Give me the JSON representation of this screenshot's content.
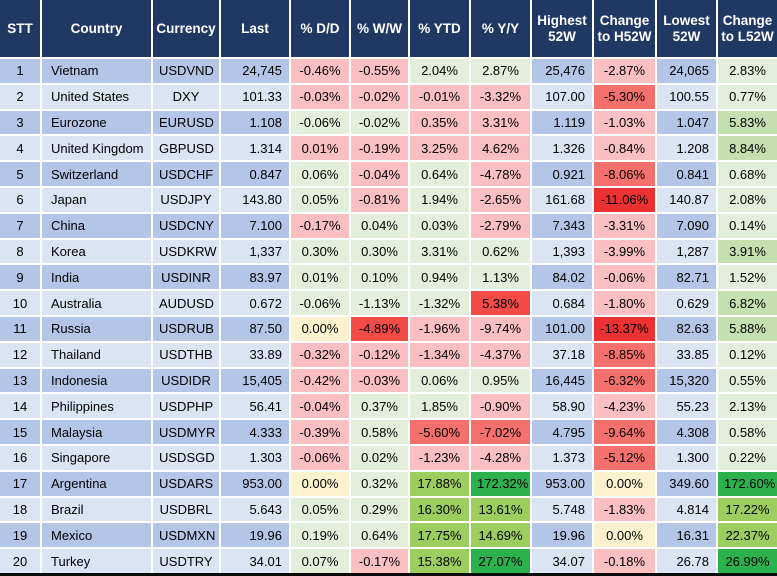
{
  "palette": {
    "header_bg": "#1F3864",
    "header_text": "#FFFFFF",
    "stripe_dark": "#B3C6E7",
    "stripe_light": "#DAE4F3",
    "grid_line": "#FFFFFF",
    "bottom_border": "#0A0A0A",
    "R1": "#F9BFC1",
    "R2": "#F4706C",
    "R3": "#F34B47",
    "R4": "#EC3132",
    "CREAM": "#FDF2CF",
    "G1": "#E3EFDA",
    "G2": "#C5E0B0",
    "G3": "#9BCD5F",
    "G4": "#2BB24C"
  },
  "table": {
    "columns": [
      {
        "key": "stt",
        "label": "STT",
        "width": 40,
        "align": "center"
      },
      {
        "key": "country",
        "label": "Country",
        "width": 111,
        "align": "left"
      },
      {
        "key": "currency",
        "label": "Currency",
        "width": 68,
        "align": "center"
      },
      {
        "key": "last",
        "label": "Last",
        "width": 70,
        "align": "right"
      },
      {
        "key": "dd",
        "label": "% D/D",
        "width": 60,
        "align": "center"
      },
      {
        "key": "ww",
        "label": "% W/W",
        "width": 59,
        "align": "center"
      },
      {
        "key": "ytd",
        "label": "% YTD",
        "width": 61,
        "align": "center"
      },
      {
        "key": "yy",
        "label": "% Y/Y",
        "width": 61,
        "align": "center"
      },
      {
        "key": "high52",
        "label": "Highest 52W",
        "width": 62,
        "align": "right"
      },
      {
        "key": "chg_h52",
        "label": "Change to H52W",
        "width": 63,
        "align": "center"
      },
      {
        "key": "low52",
        "label": "Lowest 52W",
        "width": 61,
        "align": "right"
      },
      {
        "key": "chg_l52",
        "label": "Change to L52W",
        "width": 61,
        "align": "center"
      }
    ],
    "rows": [
      {
        "cells": [
          "1",
          "Vietnam",
          "USDVND",
          "24,745",
          {
            "t": "-0.46%",
            "c": "R1"
          },
          {
            "t": "-0.55%",
            "c": "R1"
          },
          {
            "t": "2.04%",
            "c": "G1"
          },
          {
            "t": "2.87%",
            "c": "G1"
          },
          "25,476",
          {
            "t": "-2.87%",
            "c": "R1"
          },
          "24,065",
          {
            "t": "2.83%",
            "c": "G1"
          }
        ]
      },
      {
        "cells": [
          "2",
          "United States",
          "DXY",
          "101.33",
          {
            "t": "-0.03%",
            "c": "R1"
          },
          {
            "t": "-0.02%",
            "c": "R1"
          },
          {
            "t": "-0.01%",
            "c": "R1"
          },
          {
            "t": "-3.32%",
            "c": "R1"
          },
          "107.00",
          {
            "t": "-5.30%",
            "c": "R2"
          },
          "100.55",
          {
            "t": "0.77%",
            "c": "G1"
          }
        ]
      },
      {
        "cells": [
          "3",
          "Eurozone",
          "EURUSD",
          "1.108",
          {
            "t": "-0.06%",
            "c": "G1"
          },
          {
            "t": "-0.02%",
            "c": "G1"
          },
          {
            "t": "0.35%",
            "c": "R1"
          },
          {
            "t": "3.31%",
            "c": "R1"
          },
          "1.119",
          {
            "t": "-1.03%",
            "c": "R1"
          },
          "1.047",
          {
            "t": "5.83%",
            "c": "G2"
          }
        ]
      },
      {
        "cells": [
          "4",
          "United Kingdom",
          "GBPUSD",
          "1.314",
          {
            "t": "0.01%",
            "c": "R1"
          },
          {
            "t": "-0.19%",
            "c": "R1"
          },
          {
            "t": "3.25%",
            "c": "R1"
          },
          {
            "t": "4.62%",
            "c": "R1"
          },
          "1.326",
          {
            "t": "-0.84%",
            "c": "R1"
          },
          "1.208",
          {
            "t": "8.84%",
            "c": "G2"
          }
        ]
      },
      {
        "cells": [
          "5",
          "Switzerland",
          "USDCHF",
          "0.847",
          {
            "t": "0.06%",
            "c": "G1"
          },
          {
            "t": "-0.04%",
            "c": "R1"
          },
          {
            "t": "0.64%",
            "c": "G1"
          },
          {
            "t": "-4.78%",
            "c": "R1"
          },
          "0.921",
          {
            "t": "-8.06%",
            "c": "R2"
          },
          "0.841",
          {
            "t": "0.68%",
            "c": "G1"
          }
        ]
      },
      {
        "cells": [
          "6",
          "Japan",
          "USDJPY",
          "143.80",
          {
            "t": "0.05%",
            "c": "G1"
          },
          {
            "t": "-0.81%",
            "c": "R1"
          },
          {
            "t": "1.94%",
            "c": "G1"
          },
          {
            "t": "-2.65%",
            "c": "R1"
          },
          "161.68",
          {
            "t": "-11.06%",
            "c": "R4"
          },
          "140.87",
          {
            "t": "2.08%",
            "c": "G1"
          }
        ]
      },
      {
        "cells": [
          "7",
          "China",
          "USDCNY",
          "7.100",
          {
            "t": "-0.17%",
            "c": "R1"
          },
          {
            "t": "0.04%",
            "c": "G1"
          },
          {
            "t": "0.03%",
            "c": "G1"
          },
          {
            "t": "-2.79%",
            "c": "R1"
          },
          "7.343",
          {
            "t": "-3.31%",
            "c": "R1"
          },
          "7.090",
          {
            "t": "0.14%",
            "c": "G1"
          }
        ]
      },
      {
        "cells": [
          "8",
          "Korea",
          "USDKRW",
          "1,337",
          {
            "t": "0.30%",
            "c": "G1"
          },
          {
            "t": "0.30%",
            "c": "G1"
          },
          {
            "t": "3.31%",
            "c": "G1"
          },
          {
            "t": "0.62%",
            "c": "G1"
          },
          "1,393",
          {
            "t": "-3.99%",
            "c": "R1"
          },
          "1,287",
          {
            "t": "3.91%",
            "c": "G2"
          }
        ]
      },
      {
        "cells": [
          "9",
          "India",
          "USDINR",
          "83.97",
          {
            "t": "0.01%",
            "c": "G1"
          },
          {
            "t": "0.10%",
            "c": "G1"
          },
          {
            "t": "0.94%",
            "c": "G1"
          },
          {
            "t": "1.13%",
            "c": "G1"
          },
          "84.02",
          {
            "t": "-0.06%",
            "c": "R1"
          },
          "82.71",
          {
            "t": "1.52%",
            "c": "G1"
          }
        ]
      },
      {
        "cells": [
          "10",
          "Australia",
          "AUDUSD",
          "0.672",
          {
            "t": "-0.06%",
            "c": "G1"
          },
          {
            "t": "-1.13%",
            "c": "G1"
          },
          {
            "t": "-1.32%",
            "c": "G1"
          },
          {
            "t": "5.38%",
            "c": "R3"
          },
          "0.684",
          {
            "t": "-1.80%",
            "c": "R1"
          },
          "0.629",
          {
            "t": "6.82%",
            "c": "G2"
          }
        ]
      },
      {
        "cells": [
          "11",
          "Russia",
          "USDRUB",
          "87.50",
          {
            "t": "0.00%",
            "c": "CREAM"
          },
          {
            "t": "-4.89%",
            "c": "R3"
          },
          {
            "t": "-1.96%",
            "c": "R1"
          },
          {
            "t": "-9.74%",
            "c": "R1"
          },
          "101.00",
          {
            "t": "-13.37%",
            "c": "R4"
          },
          "82.63",
          {
            "t": "5.88%",
            "c": "G2"
          }
        ]
      },
      {
        "cells": [
          "12",
          "Thailand",
          "USDTHB",
          "33.89",
          {
            "t": "-0.32%",
            "c": "R1"
          },
          {
            "t": "-0.12%",
            "c": "R1"
          },
          {
            "t": "-1.34%",
            "c": "R1"
          },
          {
            "t": "-4.37%",
            "c": "R1"
          },
          "37.18",
          {
            "t": "-8.85%",
            "c": "R2"
          },
          "33.85",
          {
            "t": "0.12%",
            "c": "G1"
          }
        ]
      },
      {
        "cells": [
          "13",
          "Indonesia",
          "USDIDR",
          "15,405",
          {
            "t": "-0.42%",
            "c": "R1"
          },
          {
            "t": "-0.03%",
            "c": "R1"
          },
          {
            "t": "0.06%",
            "c": "G1"
          },
          {
            "t": "0.95%",
            "c": "G1"
          },
          "16,445",
          {
            "t": "-6.32%",
            "c": "R2"
          },
          "15,320",
          {
            "t": "0.55%",
            "c": "G1"
          }
        ]
      },
      {
        "cells": [
          "14",
          "Philippines",
          "USDPHP",
          "56.41",
          {
            "t": "-0.04%",
            "c": "R1"
          },
          {
            "t": "0.37%",
            "c": "G1"
          },
          {
            "t": "1.85%",
            "c": "G1"
          },
          {
            "t": "-0.90%",
            "c": "R1"
          },
          "58.90",
          {
            "t": "-4.23%",
            "c": "R1"
          },
          "55.23",
          {
            "t": "2.13%",
            "c": "G1"
          }
        ]
      },
      {
        "cells": [
          "15",
          "Malaysia",
          "USDMYR",
          "4.333",
          {
            "t": "-0.39%",
            "c": "R1"
          },
          {
            "t": "0.58%",
            "c": "G1"
          },
          {
            "t": "-5.60%",
            "c": "R2"
          },
          {
            "t": "-7.02%",
            "c": "R2"
          },
          "4.795",
          {
            "t": "-9.64%",
            "c": "R2"
          },
          "4.308",
          {
            "t": "0.58%",
            "c": "G1"
          }
        ]
      },
      {
        "cells": [
          "16",
          "Singapore",
          "USDSGD",
          "1.303",
          {
            "t": "-0.06%",
            "c": "R1"
          },
          {
            "t": "0.02%",
            "c": "G1"
          },
          {
            "t": "-1.23%",
            "c": "R1"
          },
          {
            "t": "-4.28%",
            "c": "R1"
          },
          "1.373",
          {
            "t": "-5.12%",
            "c": "R2"
          },
          "1.300",
          {
            "t": "0.22%",
            "c": "G1"
          }
        ]
      },
      {
        "cells": [
          "17",
          "Argentina",
          "USDARS",
          "953.00",
          {
            "t": "0.00%",
            "c": "CREAM"
          },
          {
            "t": "0.32%",
            "c": "G1"
          },
          {
            "t": "17.88%",
            "c": "G3"
          },
          {
            "t": "172.32%",
            "c": "G4"
          },
          "953.00",
          {
            "t": "0.00%",
            "c": "CREAM"
          },
          "349.60",
          {
            "t": "172.60%",
            "c": "G4"
          }
        ]
      },
      {
        "cells": [
          "18",
          "Brazil",
          "USDBRL",
          "5.643",
          {
            "t": "0.05%",
            "c": "G1"
          },
          {
            "t": "0.29%",
            "c": "G1"
          },
          {
            "t": "16.30%",
            "c": "G3"
          },
          {
            "t": "13.61%",
            "c": "G3"
          },
          "5.748",
          {
            "t": "-1.83%",
            "c": "R1"
          },
          "4.814",
          {
            "t": "17.22%",
            "c": "G3"
          }
        ]
      },
      {
        "cells": [
          "19",
          "Mexico",
          "USDMXN",
          "19.96",
          {
            "t": "0.19%",
            "c": "G1"
          },
          {
            "t": "0.64%",
            "c": "G1"
          },
          {
            "t": "17.75%",
            "c": "G3"
          },
          {
            "t": "14.69%",
            "c": "G3"
          },
          "19.96",
          {
            "t": "0.00%",
            "c": "CREAM"
          },
          "16.31",
          {
            "t": "22.37%",
            "c": "G3"
          }
        ]
      },
      {
        "cells": [
          "20",
          "Turkey",
          "USDTRY",
          "34.01",
          {
            "t": "0.07%",
            "c": "G1"
          },
          {
            "t": "-0.17%",
            "c": "R1"
          },
          {
            "t": "15.38%",
            "c": "G3"
          },
          {
            "t": "27.07%",
            "c": "G4"
          },
          "34.07",
          {
            "t": "-0.18%",
            "c": "R1"
          },
          "26.78",
          {
            "t": "26.99%",
            "c": "G4"
          }
        ]
      }
    ]
  }
}
